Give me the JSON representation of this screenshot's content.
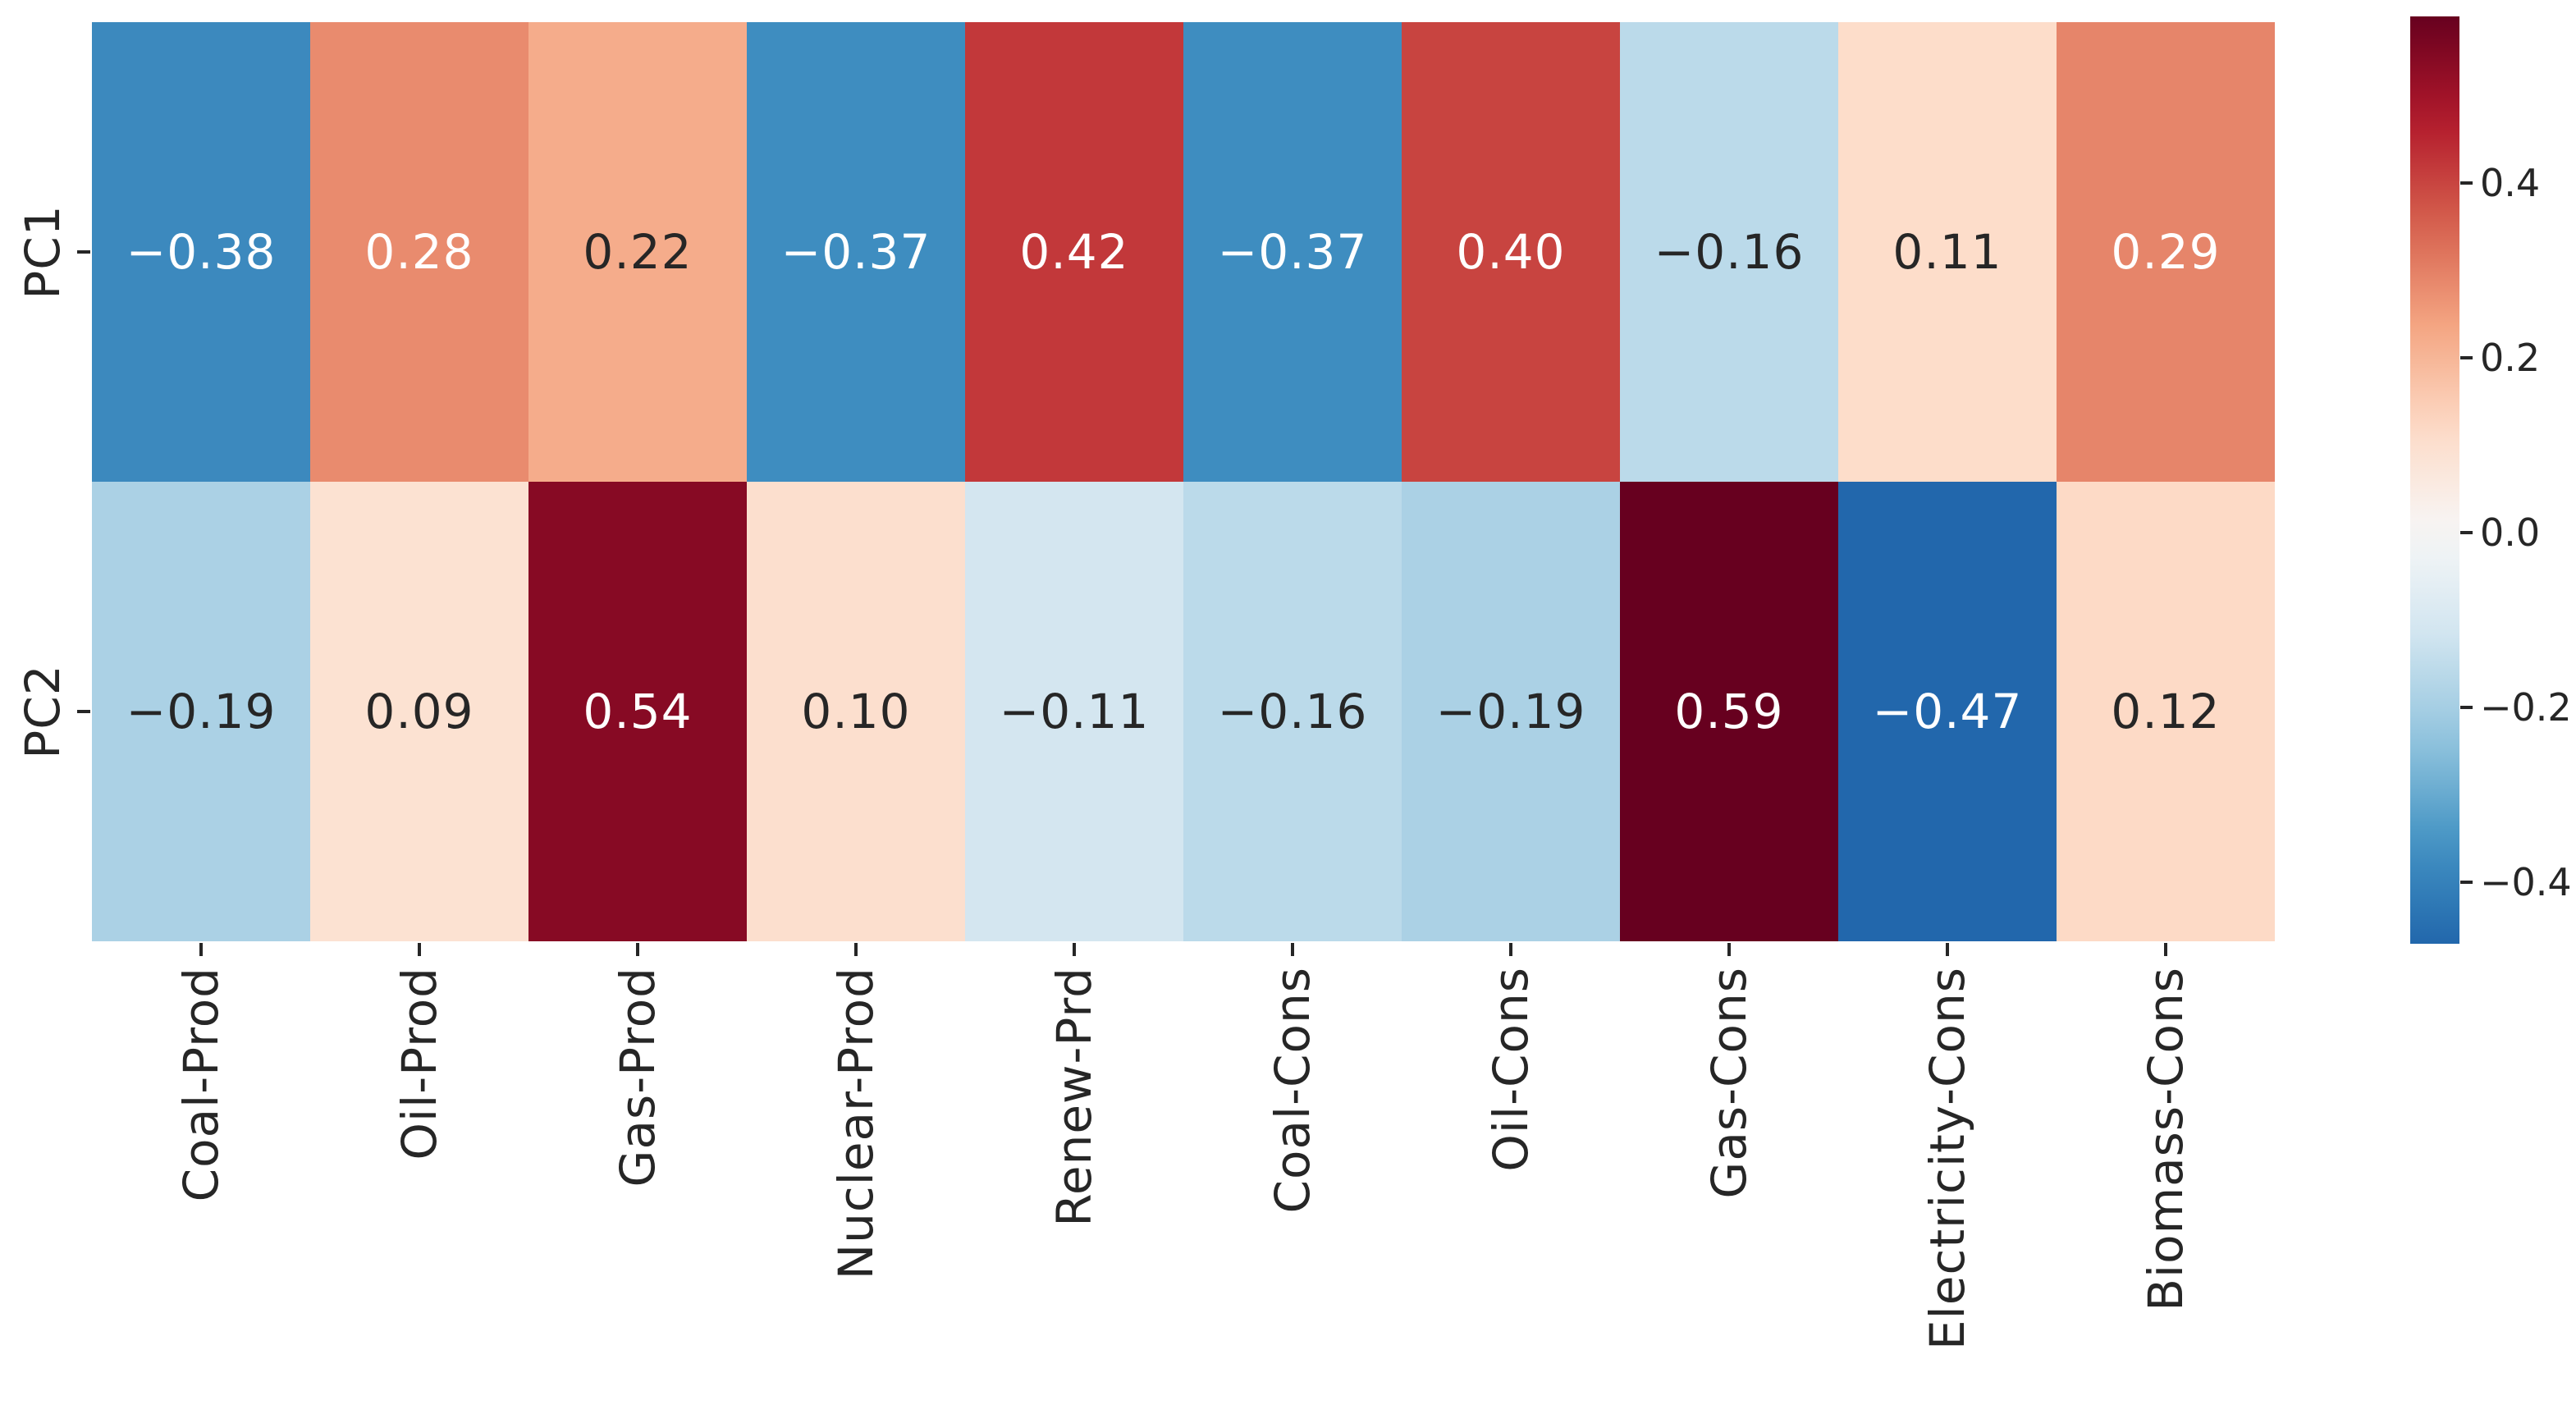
{
  "figure": {
    "background_color": "#ffffff",
    "axis_text_color": "#262626"
  },
  "chart_data": {
    "type": "heatmap",
    "title": "",
    "xlabel": "",
    "ylabel": "",
    "rows": [
      "PC1",
      "PC2"
    ],
    "columns": [
      "Coal-Prod",
      "Oil-Prod",
      "Gas-Prod",
      "Nuclear-Prod",
      "Renew-Prd",
      "Coal-Cons",
      "Oil-Cons",
      "Gas-Cons",
      "Electricity-Cons",
      "Biomass-Cons"
    ],
    "values": [
      [
        -0.38,
        0.28,
        0.22,
        -0.37,
        0.42,
        -0.37,
        0.4,
        -0.16,
        0.11,
        0.29
      ],
      [
        -0.19,
        0.09,
        0.54,
        0.1,
        -0.11,
        -0.16,
        -0.19,
        0.59,
        -0.47,
        0.12
      ]
    ],
    "annotation_decimals": 2,
    "grid": false,
    "colormap": {
      "name": "RdBu_r",
      "center": 0,
      "norm_min": -0.59,
      "norm_max": 0.59,
      "anchors": [
        "#053061",
        "#2166ac",
        "#4393c3",
        "#92c5de",
        "#d1e5f0",
        "#f7f7f7",
        "#fddbc7",
        "#f4a582",
        "#d6604d",
        "#b2182b",
        "#67001f"
      ]
    },
    "annotation_color_light": "#ffffff",
    "annotation_color_dark": "#262626",
    "colorbar": {
      "position": "right",
      "value_top": 0.59,
      "value_bottom": -0.47,
      "tick_values": [
        0.4,
        0.2,
        0.0,
        -0.2,
        -0.4
      ],
      "tick_labels": [
        "0.4",
        "0.2",
        "0.0",
        "−0.2",
        "−0.4"
      ]
    }
  }
}
